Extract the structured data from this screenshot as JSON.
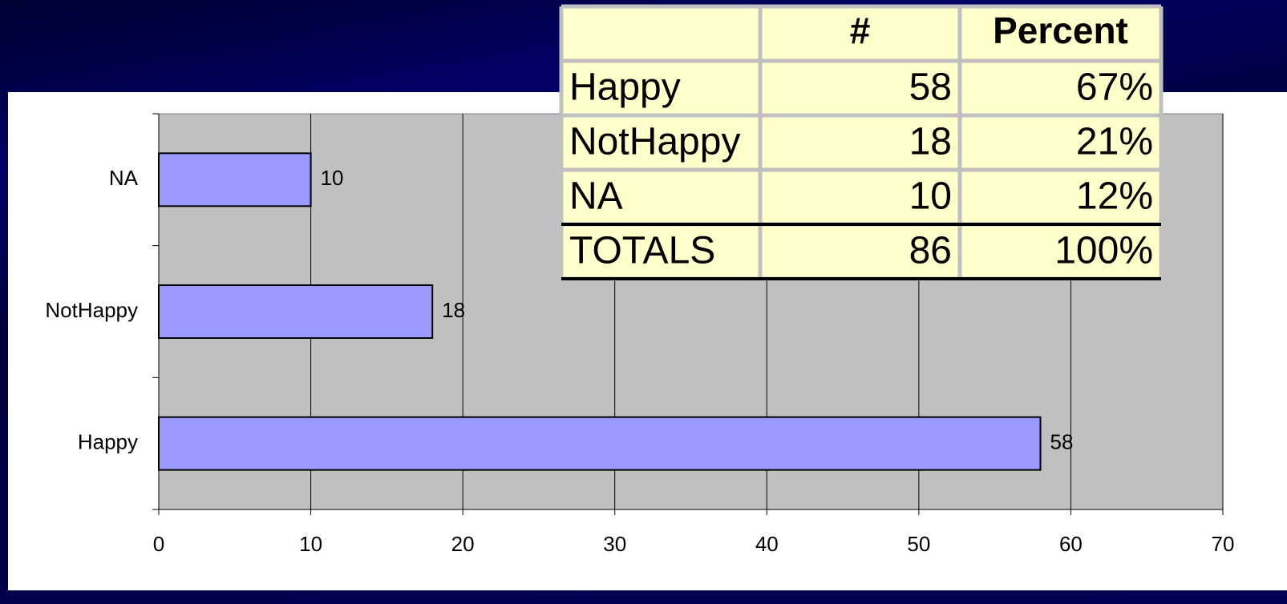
{
  "chart_data": {
    "type": "bar",
    "orientation": "horizontal",
    "categories": [
      "Happy",
      "NotHappy",
      "NA"
    ],
    "values": [
      58,
      18,
      10
    ],
    "color": "#9999ff",
    "xlim": [
      0,
      70
    ],
    "xticks": [
      0,
      10,
      20,
      30,
      40,
      50,
      60,
      70
    ],
    "grid": true
  },
  "table": {
    "header": [
      "#",
      "Percent"
    ],
    "rows": [
      [
        "Happy",
        "58",
        "67%"
      ],
      [
        "NotHappy",
        "18",
        "21%"
      ],
      [
        "NA",
        "10",
        "12%"
      ],
      [
        "TOTALS",
        "86",
        "100%"
      ]
    ]
  }
}
